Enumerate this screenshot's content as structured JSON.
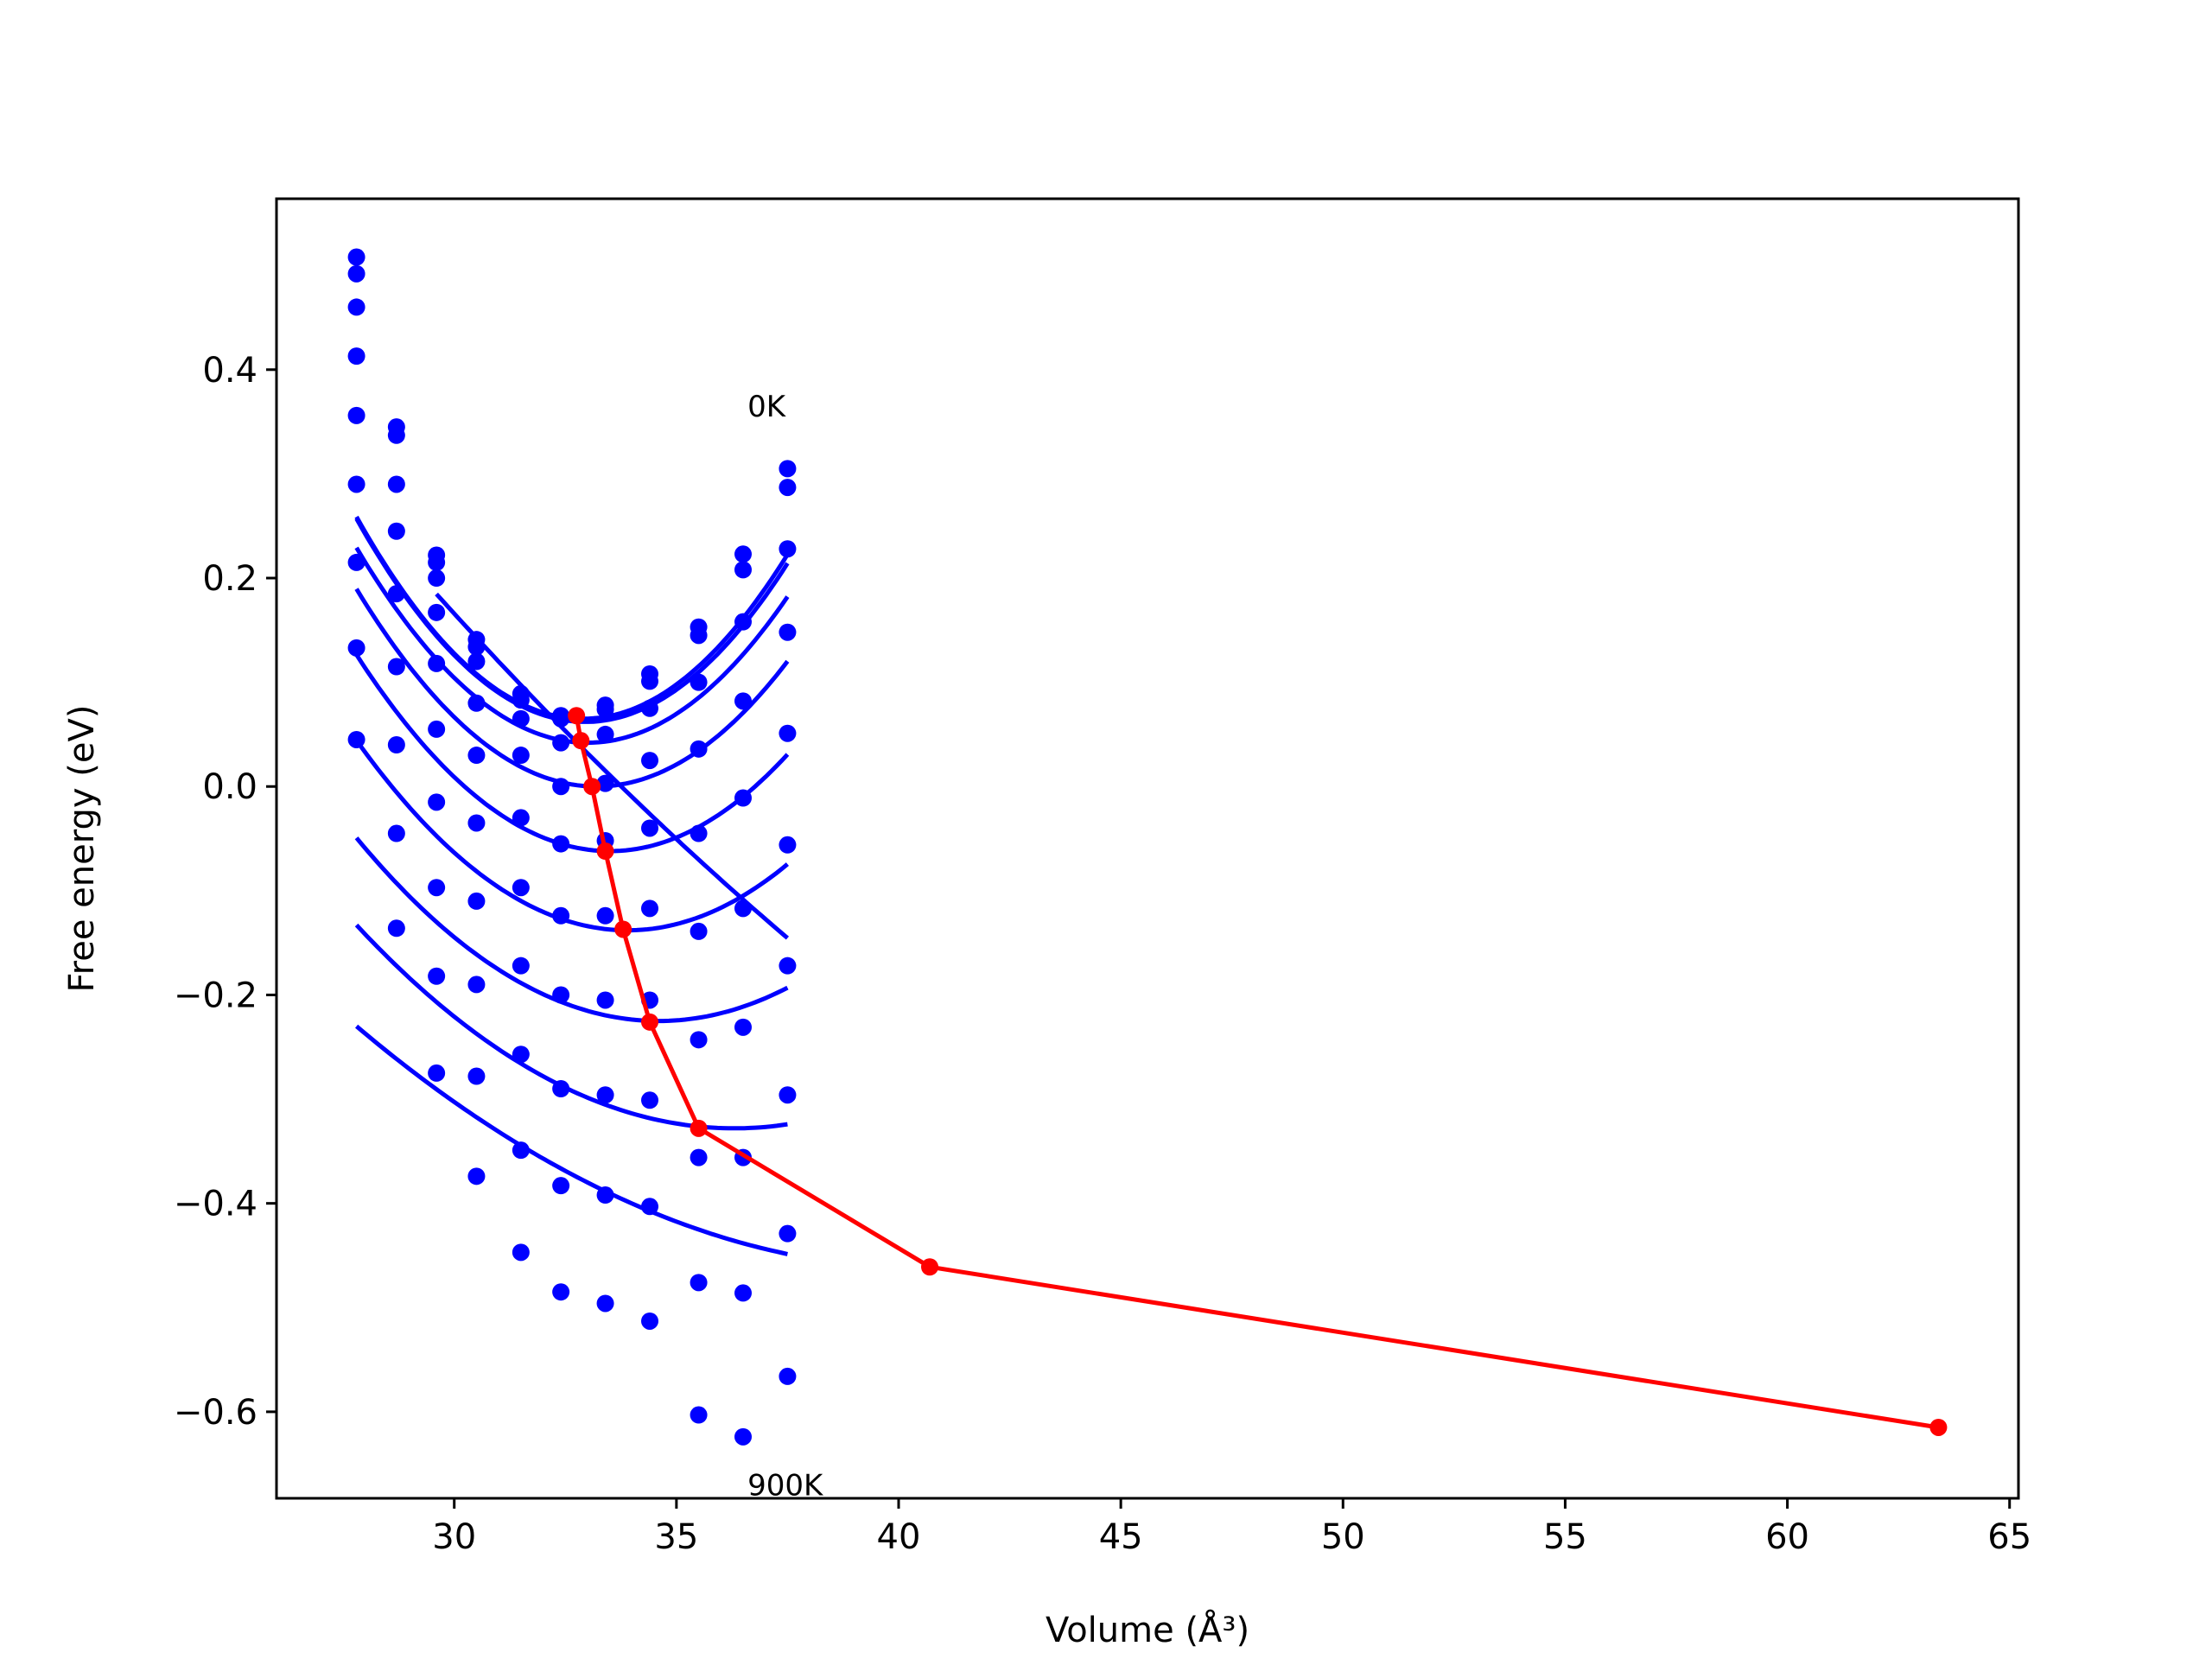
{
  "chart_data": {
    "type": "line",
    "xlabel": "Volume (Å³)",
    "ylabel": "Free energy (eV)",
    "xlim": [
      26,
      65.2
    ],
    "ylim": [
      -0.683,
      0.564
    ],
    "xticks": [
      30,
      35,
      40,
      45,
      50,
      55,
      60,
      65
    ],
    "xtick_labels": [
      "30",
      "35",
      "40",
      "45",
      "50",
      "55",
      "60",
      "65"
    ],
    "yticks": [
      0.4,
      0.2,
      0.0,
      -0.2,
      -0.4,
      -0.6
    ],
    "ytick_labels": [
      "0.4",
      "0.2",
      "0.0",
      "−0.2",
      "−0.4",
      "−0.6"
    ],
    "grid": false,
    "colors": {
      "points": "#0000ff",
      "fits": "#0000ff",
      "minima": "#ff0000"
    },
    "annotations": [
      {
        "text": "0K",
        "x": 36.6,
        "y": 0.355
      },
      {
        "text": "900K",
        "x": 36.6,
        "y": -0.68
      }
    ],
    "volumes": [
      27.8,
      28.7,
      29.6,
      30.5,
      31.5,
      32.4,
      33.4,
      34.4,
      35.5,
      36.5,
      37.5
    ],
    "series": [
      {
        "points": [
          0.508,
          0.345,
          0.222,
          0.141,
          0.089,
          0.068,
          0.078,
          0.108,
          0.153,
          0.223,
          0.305
        ],
        "fit": {
          "a": 0.00745,
          "v0": 32.9,
          "e0": 0.065
        }
      },
      {
        "points": [
          0.492,
          0.337,
          0.215,
          0.134,
          0.083,
          0.065,
          0.074,
          0.101,
          0.145,
          0.208,
          0.287
        ],
        "fit": {
          "a": 0.00735,
          "v0": 32.95,
          "e0": 0.062
        }
      },
      {
        "points": [
          0.46,
          0.29,
          0.2,
          0.12,
          0.065,
          0.042,
          0.05,
          0.075,
          0.1,
          0.158,
          0.228
        ],
        "fit": {
          "a": 0.00692,
          "v0": 33.0,
          "e0": 0.042
        }
      },
      {
        "points": [
          0.413,
          0.245,
          0.167,
          0.08,
          0.03,
          0.0,
          0.003,
          0.025,
          0.036,
          0.082,
          0.148
        ],
        "fit": {
          "a": 0.0065,
          "v0": 33.2,
          "e0": 0.0
        }
      },
      {
        "points": [
          0.356,
          0.185,
          0.118,
          0.03,
          -0.03,
          -0.055,
          -0.052,
          -0.04,
          -0.045,
          -0.011,
          0.051
        ],
        "fit": {
          "a": 0.0058,
          "v0": 33.5,
          "e0": -0.062
        }
      },
      {
        "points": [
          0.29,
          0.115,
          0.055,
          -0.035,
          -0.097,
          -0.124,
          -0.124,
          -0.117,
          -0.139,
          -0.117,
          -0.056
        ],
        "fit": {
          "a": 0.0049,
          "v0": 33.9,
          "e0": -0.138
        }
      },
      {
        "points": [
          0.215,
          0.04,
          -0.015,
          -0.11,
          -0.172,
          -0.2,
          -0.205,
          -0.205,
          -0.243,
          -0.231,
          -0.172
        ],
        "fit": {
          "a": 0.0038,
          "v0": 34.6,
          "e0": -0.225
        }
      },
      {
        "points": [
          0.133,
          -0.045,
          -0.097,
          -0.19,
          -0.257,
          -0.29,
          -0.296,
          -0.301,
          -0.356,
          -0.356,
          -0.296
        ],
        "fit": {
          "a": 0.0027,
          "v0": 36.3,
          "e0": -0.328
        }
      },
      {
        "points": [
          0.045,
          -0.136,
          -0.182,
          -0.278,
          -0.349,
          -0.383,
          -0.392,
          -0.403,
          -0.476,
          -0.486,
          -0.429
        ],
        "fit": {
          "a": 0.0014,
          "v0": 40.7,
          "e0": -0.463
        }
      },
      {
        "points": [
          null,
          null,
          -0.275,
          -0.374,
          -0.447,
          -0.485,
          -0.496,
          -0.513,
          -0.603,
          -0.624,
          -0.566
        ],
        "fit": {
          "a": 0.0007,
          "v0": 63.4,
          "e0": -0.615
        }
      }
    ],
    "minima": {
      "x": [
        32.75,
        32.85,
        33.1,
        33.4,
        33.8,
        34.4,
        35.5,
        40.7,
        63.4
      ],
      "y": [
        0.068,
        0.044,
        0.0,
        -0.062,
        -0.137,
        -0.226,
        -0.328,
        -0.461,
        -0.615
      ]
    }
  }
}
